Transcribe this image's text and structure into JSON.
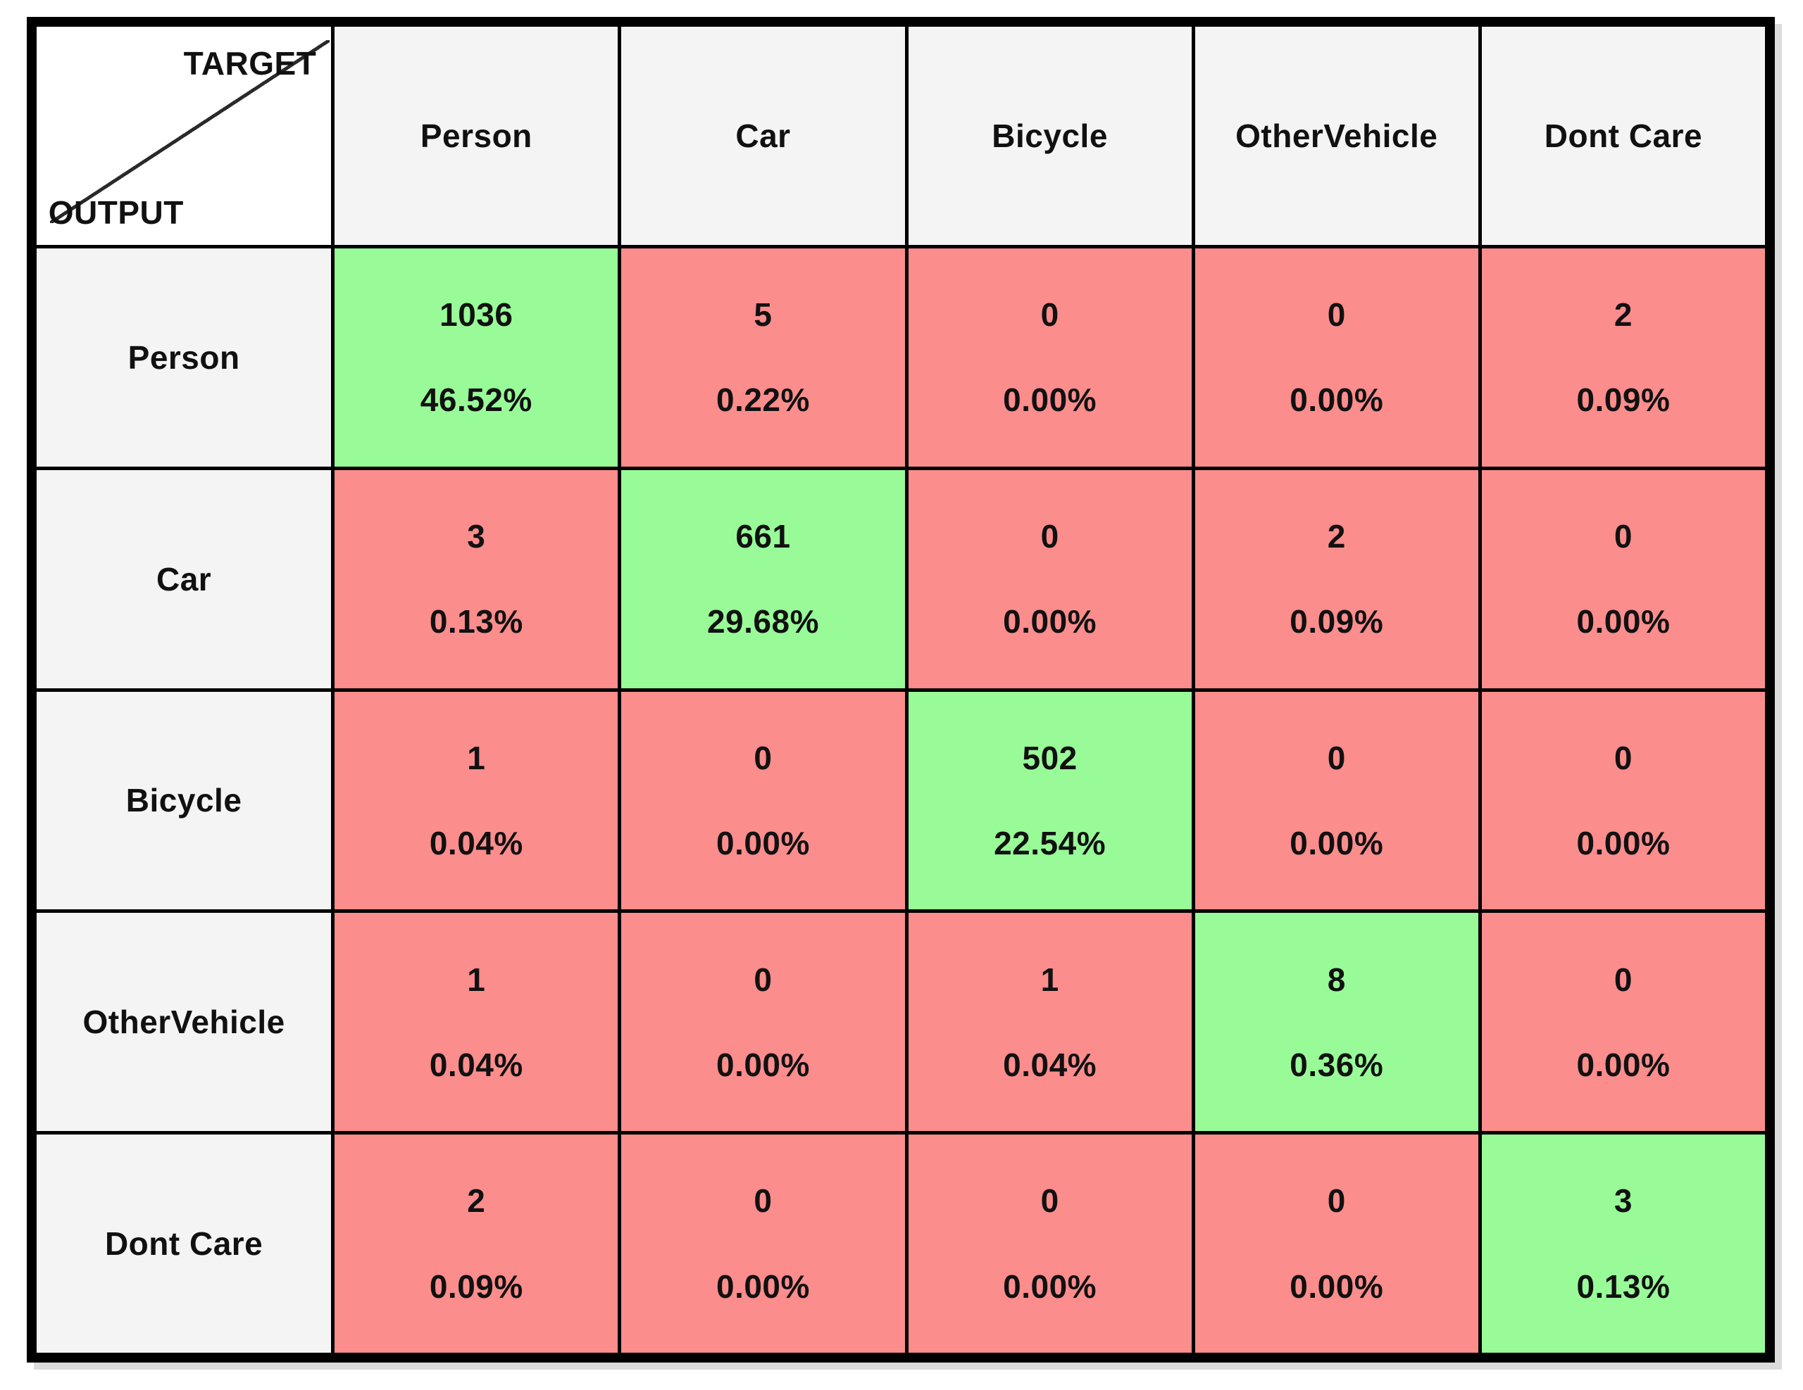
{
  "table": {
    "corner": {
      "target_label": "TARGET",
      "output_label": "OUTPUT"
    },
    "columns": [
      "Person",
      "Car",
      "Bicycle",
      "OtherVehicle",
      "Dont Care"
    ],
    "rows": [
      {
        "label": "Person",
        "cells": [
          {
            "count": "1036",
            "pct": "46.52%",
            "correct": true
          },
          {
            "count": "5",
            "pct": "0.22%",
            "correct": false
          },
          {
            "count": "0",
            "pct": "0.00%",
            "correct": false
          },
          {
            "count": "0",
            "pct": "0.00%",
            "correct": false
          },
          {
            "count": "2",
            "pct": "0.09%",
            "correct": false
          }
        ]
      },
      {
        "label": "Car",
        "cells": [
          {
            "count": "3",
            "pct": "0.13%",
            "correct": false
          },
          {
            "count": "661",
            "pct": "29.68%",
            "correct": true
          },
          {
            "count": "0",
            "pct": "0.00%",
            "correct": false
          },
          {
            "count": "2",
            "pct": "0.09%",
            "correct": false
          },
          {
            "count": "0",
            "pct": "0.00%",
            "correct": false
          }
        ]
      },
      {
        "label": "Bicycle",
        "cells": [
          {
            "count": "1",
            "pct": "0.04%",
            "correct": false
          },
          {
            "count": "0",
            "pct": "0.00%",
            "correct": false
          },
          {
            "count": "502",
            "pct": "22.54%",
            "correct": true
          },
          {
            "count": "0",
            "pct": "0.00%",
            "correct": false
          },
          {
            "count": "0",
            "pct": "0.00%",
            "correct": false
          }
        ]
      },
      {
        "label": "OtherVehicle",
        "cells": [
          {
            "count": "1",
            "pct": "0.04%",
            "correct": false
          },
          {
            "count": "0",
            "pct": "0.00%",
            "correct": false
          },
          {
            "count": "1",
            "pct": "0.04%",
            "correct": false
          },
          {
            "count": "8",
            "pct": "0.36%",
            "correct": true
          },
          {
            "count": "0",
            "pct": "0.00%",
            "correct": false
          }
        ]
      },
      {
        "label": "Dont Care",
        "cells": [
          {
            "count": "2",
            "pct": "0.09%",
            "correct": false
          },
          {
            "count": "0",
            "pct": "0.00%",
            "correct": false
          },
          {
            "count": "0",
            "pct": "0.00%",
            "correct": false
          },
          {
            "count": "0",
            "pct": "0.00%",
            "correct": false
          },
          {
            "count": "3",
            "pct": "0.13%",
            "correct": true
          }
        ]
      }
    ],
    "colors": {
      "correct_bg": "#98FB98",
      "incorrect_bg": "#FC8D8D",
      "header_bg": "#F4F4F4",
      "corner_bg": "#FFFFFF",
      "border": "#000000"
    }
  },
  "chart_data": {
    "type": "heatmap",
    "title": "Confusion matrix (OUTPUT vs TARGET)",
    "xlabel": "TARGET",
    "ylabel": "OUTPUT",
    "categories": [
      "Person",
      "Car",
      "Bicycle",
      "OtherVehicle",
      "Dont Care"
    ],
    "matrix_counts": [
      [
        1036,
        5,
        0,
        0,
        2
      ],
      [
        3,
        661,
        0,
        2,
        0
      ],
      [
        1,
        0,
        502,
        0,
        0
      ],
      [
        1,
        0,
        1,
        8,
        0
      ],
      [
        2,
        0,
        0,
        0,
        3
      ]
    ],
    "matrix_percent": [
      [
        46.52,
        0.22,
        0.0,
        0.0,
        0.09
      ],
      [
        0.13,
        29.68,
        0.0,
        0.09,
        0.0
      ],
      [
        0.04,
        0.0,
        22.54,
        0.0,
        0.0
      ],
      [
        0.04,
        0.0,
        0.04,
        0.36,
        0.0
      ],
      [
        0.09,
        0.0,
        0.0,
        0.0,
        0.13
      ]
    ],
    "legend_position": "none",
    "grid": true,
    "cell_color_correct": "#98FB98",
    "cell_color_incorrect": "#FC8D8D"
  }
}
